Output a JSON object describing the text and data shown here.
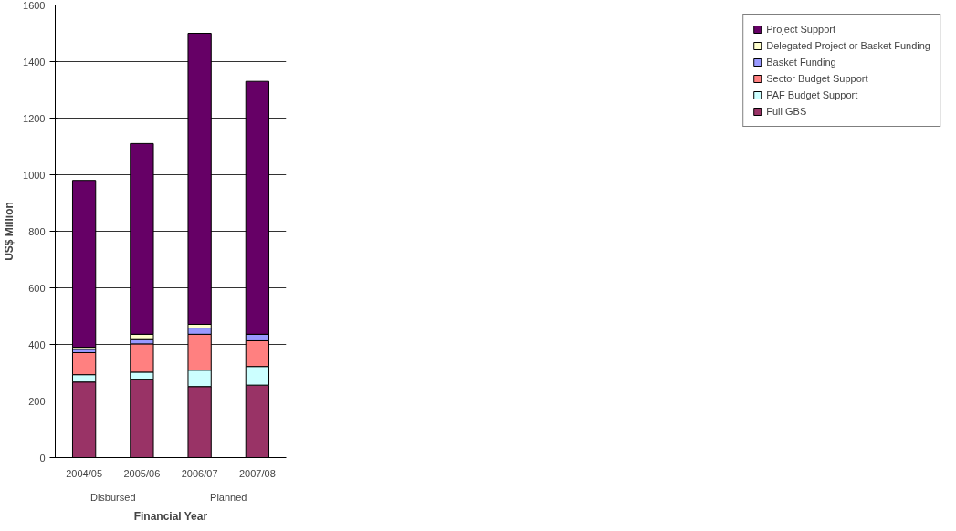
{
  "chart_data": {
    "type": "bar",
    "stacked": true,
    "xlabel": "Financial Year",
    "ylabel": "US$ Million",
    "categories": [
      "2004/05",
      "2005/06",
      "2006/07",
      "2007/08"
    ],
    "annotations": [
      "Disbursed",
      "Planned"
    ],
    "ylim": [
      0,
      1600
    ],
    "yticks": [
      0,
      200,
      400,
      600,
      800,
      1000,
      1200,
      1400,
      1600
    ],
    "grid": "y",
    "legend": "right",
    "series": [
      {
        "name": "Full GBS",
        "color": "#993366",
        "values": [
          267,
          277,
          251,
          256
        ]
      },
      {
        "name": "PAF Budget Support",
        "color": "#ccffff",
        "values": [
          26,
          25,
          58,
          66
        ]
      },
      {
        "name": "Sector Budget Support",
        "color": "#ff8080",
        "values": [
          78,
          100,
          127,
          91
        ]
      },
      {
        "name": "Basket Funding",
        "color": "#9999ff",
        "values": [
          12,
          15,
          22,
          23
        ]
      },
      {
        "name": "Delegated Project or Basket Funding",
        "color": "#ffffcc",
        "values": [
          7,
          19,
          13,
          0
        ]
      },
      {
        "name": "Project Support",
        "color": "#660066",
        "values": [
          590,
          674,
          1029,
          894
        ]
      }
    ]
  }
}
